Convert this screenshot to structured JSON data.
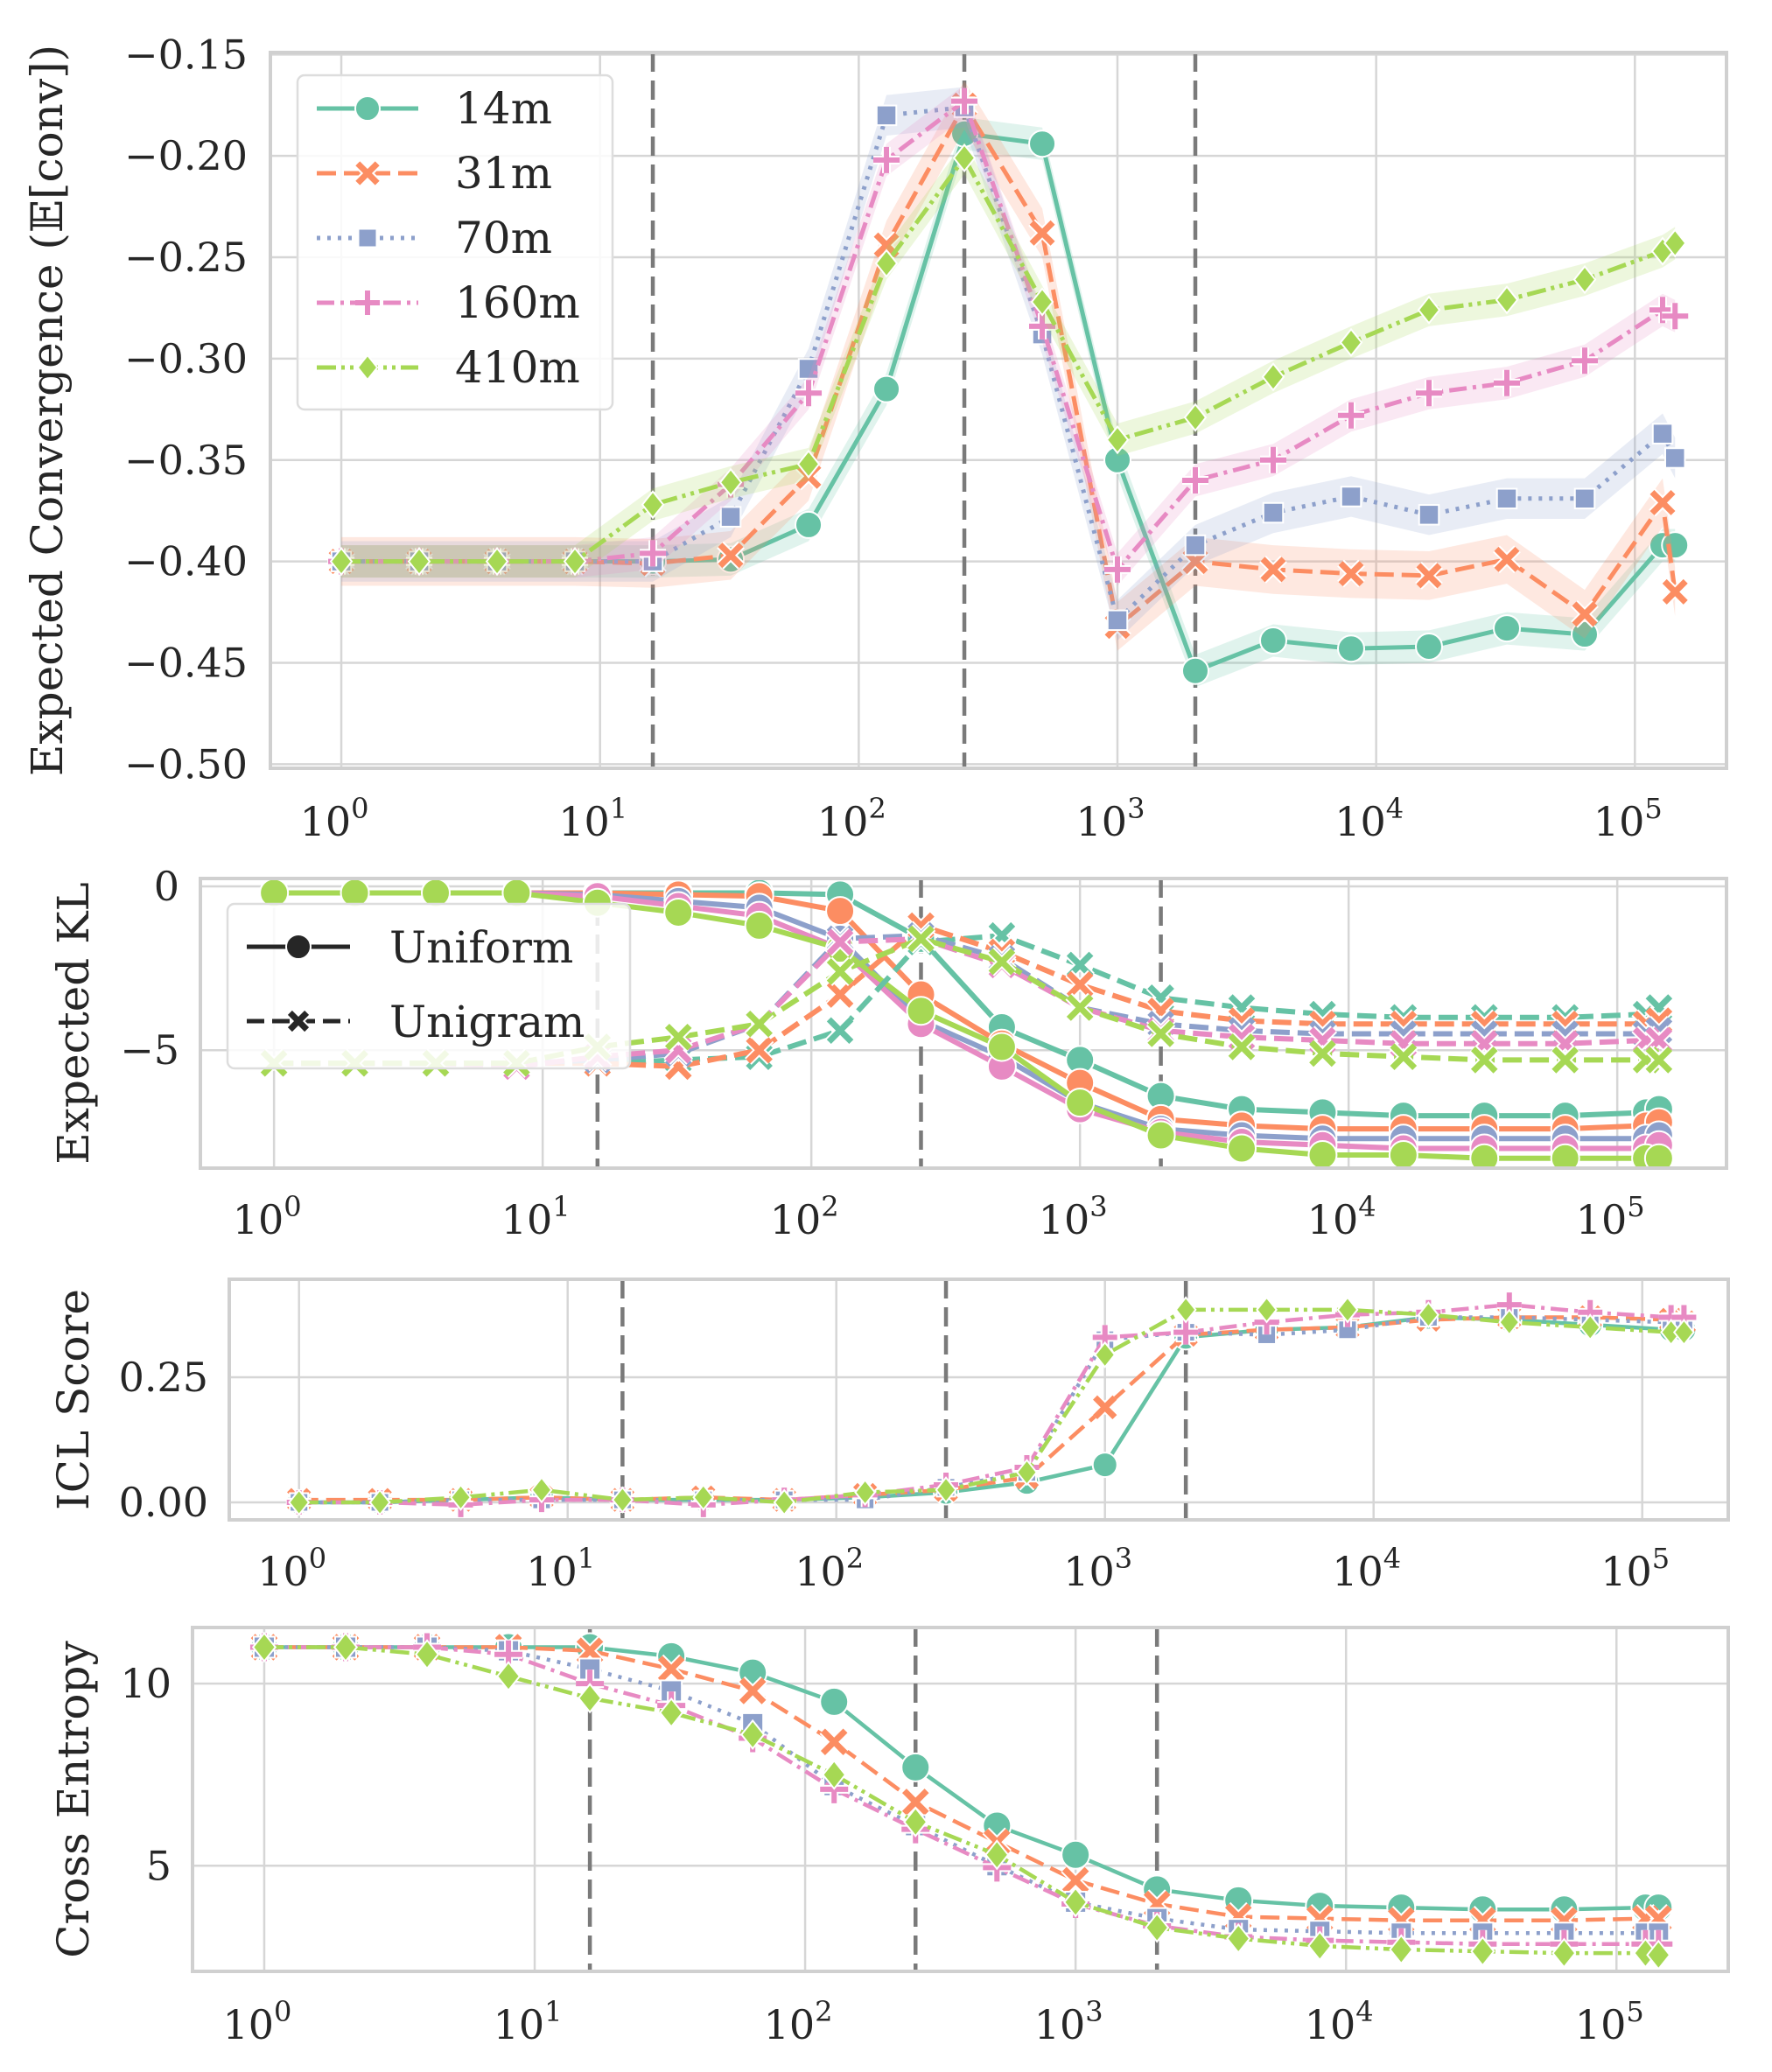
{
  "colors": {
    "14m": "#66c2a5",
    "31m": "#fc8d62",
    "70m": "#8da0cb",
    "160m": "#e78ac3",
    "410m": "#a6d854",
    "legend_dark": "#262626"
  },
  "chart_data": [
    {
      "type": "line",
      "ylabel": "Expected Convergence (𝔼[conv])",
      "xscale": "log",
      "xlim": [
        0.532,
        226000
      ],
      "ylim": [
        -0.502,
        -0.149
      ],
      "yticks": [
        -0.15,
        -0.2,
        -0.25,
        -0.3,
        -0.35,
        -0.4,
        -0.45,
        -0.5
      ],
      "ytick_labels": [
        "−0.15",
        "−0.20",
        "−0.25",
        "−0.30",
        "−0.35",
        "−0.40",
        "−0.45",
        "−0.50"
      ],
      "xticks": [
        1,
        10,
        100,
        1000,
        10000,
        100000
      ],
      "xtick_labels": [
        [
          "10",
          "0"
        ],
        [
          "10",
          "1"
        ],
        [
          "10",
          "2"
        ],
        [
          "10",
          "3"
        ],
        [
          "10",
          "4"
        ],
        [
          "10",
          "5"
        ]
      ],
      "vlines": [
        16,
        256,
        2000
      ],
      "grid": true,
      "legend": {
        "placement": "top-left",
        "entries": [
          "14m",
          "31m",
          "70m",
          "160m",
          "410m"
        ]
      },
      "x": [
        1,
        2,
        4,
        8,
        16,
        32,
        64,
        128,
        256,
        512,
        1000,
        2000,
        4000,
        8000,
        16000,
        32000,
        64000,
        128000,
        143000
      ],
      "series": [
        {
          "name": "14m",
          "marker": "circle",
          "dash": "solid",
          "band": 0.008,
          "values": [
            -0.4,
            -0.4,
            -0.4,
            -0.4,
            -0.4,
            -0.399,
            -0.382,
            -0.315,
            -0.189,
            -0.194,
            -0.35,
            -0.454,
            -0.439,
            -0.443,
            -0.442,
            -0.433,
            -0.436,
            -0.392,
            -0.392
          ]
        },
        {
          "name": "31m",
          "marker": "x",
          "dash": "dash",
          "band": 0.012,
          "values": [
            -0.4,
            -0.4,
            -0.4,
            -0.4,
            -0.401,
            -0.397,
            -0.358,
            -0.244,
            -0.175,
            -0.238,
            -0.432,
            -0.4,
            -0.404,
            -0.406,
            -0.407,
            -0.399,
            -0.426,
            -0.371,
            -0.415
          ]
        },
        {
          "name": "70m",
          "marker": "square",
          "dash": "dot",
          "band": 0.01,
          "values": [
            -0.4,
            -0.4,
            -0.4,
            -0.4,
            -0.4,
            -0.378,
            -0.305,
            -0.18,
            -0.176,
            -0.288,
            -0.429,
            -0.392,
            -0.376,
            -0.368,
            -0.377,
            -0.369,
            -0.369,
            -0.337,
            -0.349
          ]
        },
        {
          "name": "160m",
          "marker": "plus",
          "dash": "dashdot",
          "band": 0.008,
          "values": [
            -0.4,
            -0.4,
            -0.4,
            -0.4,
            -0.396,
            -0.362,
            -0.317,
            -0.202,
            -0.173,
            -0.284,
            -0.404,
            -0.36,
            -0.35,
            -0.328,
            -0.317,
            -0.312,
            -0.301,
            -0.276,
            -0.279
          ]
        },
        {
          "name": "410m",
          "marker": "diamond",
          "dash": "dashdotdot",
          "band": 0.008,
          "values": [
            -0.4,
            -0.4,
            -0.4,
            -0.4,
            -0.372,
            -0.361,
            -0.352,
            -0.253,
            -0.201,
            -0.272,
            -0.34,
            -0.329,
            -0.309,
            -0.292,
            -0.276,
            -0.271,
            -0.261,
            -0.247,
            -0.243
          ]
        }
      ]
    },
    {
      "type": "line",
      "ylabel": "Expected KL",
      "xscale": "log",
      "xlim": [
        0.532,
        255000
      ],
      "ylim": [
        -8.6,
        0.24
      ],
      "yticks": [
        0,
        -5
      ],
      "ytick_labels": [
        "0",
        "−5"
      ],
      "xticks": [
        1,
        10,
        100,
        1000,
        10000,
        100000
      ],
      "xtick_labels": [
        [
          "10",
          "0"
        ],
        [
          "10",
          "1"
        ],
        [
          "10",
          "2"
        ],
        [
          "10",
          "3"
        ],
        [
          "10",
          "4"
        ],
        [
          "10",
          "5"
        ]
      ],
      "vlines": [
        16,
        256,
        2000
      ],
      "grid": true,
      "legend": {
        "placement": "top-left",
        "entries": [
          "Uniform",
          "Unigram"
        ]
      },
      "x": [
        1,
        2,
        4,
        8,
        16,
        32,
        64,
        128,
        256,
        512,
        1000,
        2000,
        4000,
        8000,
        16000,
        32000,
        64000,
        128000,
        143000
      ],
      "series": [
        {
          "name": "14m Uniform",
          "group": "14m",
          "marker": "circle",
          "dash": "solid",
          "values": [
            -0.2,
            -0.2,
            -0.2,
            -0.2,
            -0.2,
            -0.2,
            -0.2,
            -0.25,
            -1.6,
            -4.3,
            -5.3,
            -6.4,
            -6.8,
            -6.9,
            -7.0,
            -7.0,
            -7.0,
            -6.9,
            -6.8
          ]
        },
        {
          "name": "31m Uniform",
          "group": "31m",
          "marker": "circle",
          "dash": "solid",
          "values": [
            -0.2,
            -0.2,
            -0.2,
            -0.2,
            -0.2,
            -0.25,
            -0.3,
            -0.75,
            -3.3,
            -4.8,
            -6.0,
            -7.1,
            -7.3,
            -7.4,
            -7.4,
            -7.4,
            -7.4,
            -7.3,
            -7.2
          ]
        },
        {
          "name": "70m Uniform",
          "group": "70m",
          "marker": "circle",
          "dash": "solid",
          "values": [
            -0.2,
            -0.2,
            -0.2,
            -0.2,
            -0.25,
            -0.45,
            -0.65,
            -1.6,
            -4.1,
            -5.2,
            -6.6,
            -7.4,
            -7.6,
            -7.7,
            -7.7,
            -7.7,
            -7.7,
            -7.7,
            -7.6
          ]
        },
        {
          "name": "160m Uniform",
          "group": "160m",
          "marker": "circle",
          "dash": "solid",
          "values": [
            -0.2,
            -0.2,
            -0.2,
            -0.2,
            -0.3,
            -0.6,
            -0.9,
            -1.9,
            -4.2,
            -5.5,
            -6.8,
            -7.5,
            -7.8,
            -7.9,
            -8.0,
            -8.0,
            -8.0,
            -8.0,
            -7.9
          ]
        },
        {
          "name": "410m Uniform",
          "group": "410m",
          "marker": "circle",
          "dash": "solid",
          "values": [
            -0.2,
            -0.2,
            -0.2,
            -0.2,
            -0.5,
            -0.8,
            -1.2,
            -1.9,
            -3.8,
            -4.9,
            -6.6,
            -7.6,
            -8.0,
            -8.2,
            -8.2,
            -8.3,
            -8.3,
            -8.3,
            -8.3
          ]
        },
        {
          "name": "14m Unigram",
          "group": "14m",
          "marker": "x",
          "dash": "dash",
          "values": [
            -5.4,
            -5.4,
            -5.4,
            -5.4,
            -5.4,
            -5.3,
            -5.2,
            -4.4,
            -1.7,
            -1.5,
            -2.4,
            -3.4,
            -3.7,
            -3.9,
            -4.0,
            -4.0,
            -4.0,
            -3.9,
            -3.7
          ]
        },
        {
          "name": "31m Unigram",
          "group": "31m",
          "marker": "x",
          "dash": "dash",
          "values": [
            -5.4,
            -5.4,
            -5.4,
            -5.4,
            -5.4,
            -5.5,
            -5.0,
            -3.3,
            -1.2,
            -2.0,
            -3.0,
            -3.8,
            -4.1,
            -4.2,
            -4.2,
            -4.2,
            -4.2,
            -4.2,
            -4.1
          ]
        },
        {
          "name": "70m Unigram",
          "group": "70m",
          "marker": "x",
          "dash": "dash",
          "values": [
            -5.4,
            -5.4,
            -5.4,
            -5.4,
            -5.3,
            -5.1,
            -4.2,
            -1.6,
            -1.5,
            -2.2,
            -3.7,
            -4.2,
            -4.4,
            -4.5,
            -4.5,
            -4.5,
            -4.5,
            -4.5,
            -4.4
          ]
        },
        {
          "name": "160m Unigram",
          "group": "160m",
          "marker": "x",
          "dash": "dash",
          "values": [
            -5.4,
            -5.4,
            -5.4,
            -5.5,
            -5.2,
            -5.0,
            -4.2,
            -1.7,
            -1.6,
            -2.4,
            -3.7,
            -4.4,
            -4.6,
            -4.7,
            -4.8,
            -4.8,
            -4.8,
            -4.7,
            -4.7
          ]
        },
        {
          "name": "410m Unigram",
          "group": "410m",
          "marker": "x",
          "dash": "dash",
          "values": [
            -5.4,
            -5.4,
            -5.4,
            -5.4,
            -4.9,
            -4.6,
            -4.2,
            -2.6,
            -1.6,
            -2.3,
            -3.7,
            -4.5,
            -4.9,
            -5.1,
            -5.2,
            -5.3,
            -5.3,
            -5.3,
            -5.3
          ]
        }
      ]
    },
    {
      "type": "line",
      "ylabel": "ICL Score",
      "xscale": "log",
      "xlim": [
        0.55,
        209000
      ],
      "ylim": [
        -0.035,
        0.446
      ],
      "yticks": [
        0.0,
        0.25
      ],
      "ytick_labels": [
        "0.00",
        "0.25"
      ],
      "xticks": [
        1,
        10,
        100,
        1000,
        10000,
        100000
      ],
      "xtick_labels": [
        [
          "10",
          "0"
        ],
        [
          "10",
          "1"
        ],
        [
          "10",
          "2"
        ],
        [
          "10",
          "3"
        ],
        [
          "10",
          "4"
        ],
        [
          "10",
          "5"
        ]
      ],
      "vlines": [
        16,
        256,
        2000
      ],
      "grid": true,
      "x": [
        1,
        2,
        4,
        8,
        16,
        32,
        64,
        128,
        256,
        512,
        1000,
        2000,
        4000,
        8000,
        16000,
        32000,
        64000,
        128000,
        143000
      ],
      "series": [
        {
          "name": "14m",
          "marker": "circle",
          "dash": "solid",
          "values": [
            0.0,
            0.0,
            0.005,
            0.01,
            0.005,
            0.005,
            0.005,
            0.01,
            0.02,
            0.04,
            0.075,
            0.33,
            0.345,
            0.35,
            0.37,
            0.365,
            0.355,
            0.345,
            0.345
          ]
        },
        {
          "name": "31m",
          "marker": "x",
          "dash": "dash",
          "values": [
            0.005,
            0.005,
            0.005,
            0.01,
            0.005,
            0.01,
            0.005,
            0.015,
            0.025,
            0.05,
            0.19,
            0.335,
            0.345,
            0.35,
            0.365,
            0.37,
            0.37,
            0.365,
            0.36
          ]
        },
        {
          "name": "70m",
          "marker": "square",
          "dash": "dot",
          "values": [
            0.0,
            0.0,
            0.005,
            0.005,
            0.005,
            0.005,
            0.005,
            0.005,
            0.03,
            0.06,
            0.325,
            0.34,
            0.335,
            0.345,
            0.37,
            0.37,
            0.365,
            0.36,
            0.36
          ]
        },
        {
          "name": "160m",
          "marker": "plus",
          "dash": "dashdot",
          "values": [
            0.0,
            0.0,
            -0.005,
            0.005,
            0.005,
            -0.005,
            0.005,
            0.015,
            0.035,
            0.07,
            0.33,
            0.34,
            0.36,
            0.375,
            0.38,
            0.395,
            0.38,
            0.37,
            0.37
          ]
        },
        {
          "name": "410m",
          "marker": "diamond",
          "dash": "dashdotdot",
          "values": [
            0.0,
            0.0,
            0.01,
            0.025,
            0.005,
            0.01,
            0.0,
            0.02,
            0.025,
            0.06,
            0.295,
            0.385,
            0.385,
            0.385,
            0.375,
            0.36,
            0.35,
            0.34,
            0.34
          ]
        }
      ]
    },
    {
      "type": "line",
      "ylabel": "Cross Entropy",
      "xscale": "log",
      "xlim": [
        0.543,
        259000
      ],
      "ylim": [
        2.1,
        11.54
      ],
      "yticks": [
        5,
        10
      ],
      "ytick_labels": [
        "5",
        "10"
      ],
      "xticks": [
        1,
        10,
        100,
        1000,
        10000,
        100000
      ],
      "xtick_labels": [
        [
          "10",
          "0"
        ],
        [
          "10",
          "1"
        ],
        [
          "10",
          "2"
        ],
        [
          "10",
          "3"
        ],
        [
          "10",
          "4"
        ],
        [
          "10",
          "5"
        ]
      ],
      "vlines": [
        16,
        256,
        2000
      ],
      "grid": true,
      "x": [
        1,
        2,
        4,
        8,
        16,
        32,
        64,
        128,
        256,
        512,
        1000,
        2000,
        4000,
        8000,
        16000,
        32000,
        64000,
        128000,
        143000
      ],
      "series": [
        {
          "name": "14m",
          "marker": "circle",
          "dash": "solid",
          "values": [
            11.0,
            11.0,
            11.0,
            11.0,
            11.0,
            10.75,
            10.3,
            9.5,
            7.7,
            6.1,
            5.3,
            4.35,
            4.05,
            3.9,
            3.85,
            3.8,
            3.8,
            3.85,
            3.85
          ]
        },
        {
          "name": "31m",
          "marker": "x",
          "dash": "dash",
          "values": [
            11.0,
            11.0,
            11.0,
            11.0,
            10.9,
            10.4,
            9.8,
            8.4,
            6.75,
            5.65,
            4.6,
            3.95,
            3.6,
            3.55,
            3.5,
            3.5,
            3.5,
            3.55,
            3.55
          ]
        },
        {
          "name": "70m",
          "marker": "square",
          "dash": "dot",
          "values": [
            11.0,
            11.0,
            11.0,
            10.9,
            10.4,
            9.8,
            8.9,
            7.2,
            6.1,
            5.0,
            4.0,
            3.55,
            3.25,
            3.2,
            3.15,
            3.15,
            3.15,
            3.15,
            3.15
          ]
        },
        {
          "name": "160m",
          "marker": "plus",
          "dash": "dashdot",
          "values": [
            11.0,
            11.0,
            11.0,
            10.8,
            10.0,
            9.4,
            8.5,
            7.1,
            6.0,
            4.95,
            3.95,
            3.35,
            3.05,
            2.95,
            2.9,
            2.85,
            2.85,
            2.85,
            2.85
          ]
        },
        {
          "name": "410m",
          "marker": "diamond",
          "dash": "dashdotdot",
          "values": [
            11.0,
            11.0,
            10.8,
            10.2,
            9.6,
            9.2,
            8.6,
            7.5,
            6.2,
            5.3,
            4.0,
            3.3,
            3.0,
            2.8,
            2.7,
            2.65,
            2.6,
            2.6,
            2.55
          ]
        }
      ]
    }
  ]
}
